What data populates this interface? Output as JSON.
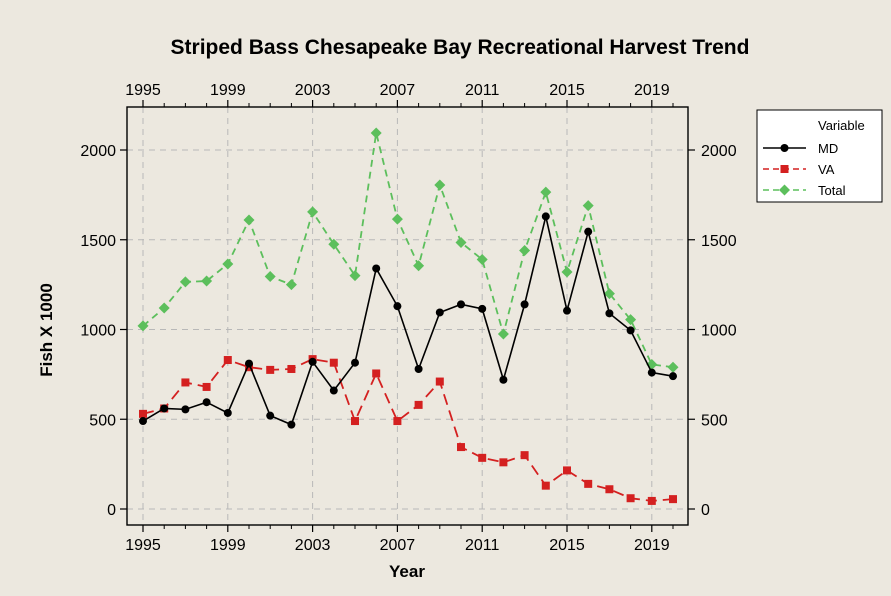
{
  "chart_data": {
    "type": "line",
    "title": "Striped Bass Chesapeake Bay Recreational Harvest Trend",
    "xlabel": "Year",
    "ylabel": "Fish  X  1000",
    "xlim": [
      1995,
      2020
    ],
    "ylim": [
      0,
      2200
    ],
    "x_ticks": [
      1995,
      1999,
      2003,
      2007,
      2011,
      2015,
      2019
    ],
    "y_ticks": [
      0,
      500,
      1000,
      1500,
      2000
    ],
    "grid": true,
    "legend": {
      "title": "Variable",
      "placement": "right-top"
    },
    "x": [
      1995,
      1996,
      1997,
      1998,
      1999,
      2000,
      2001,
      2002,
      2003,
      2004,
      2005,
      2006,
      2007,
      2008,
      2009,
      2010,
      2011,
      2012,
      2013,
      2014,
      2015,
      2016,
      2017,
      2018,
      2019,
      2020
    ],
    "series": [
      {
        "name": "MD",
        "color": "#000000",
        "marker": "circle",
        "dash": "solid",
        "values": [
          490,
          560,
          555,
          595,
          535,
          810,
          520,
          470,
          820,
          660,
          815,
          1340,
          1130,
          780,
          1095,
          1140,
          1115,
          720,
          1140,
          1630,
          1105,
          1545,
          1090,
          995,
          760,
          740
        ]
      },
      {
        "name": "VA",
        "color": "#d42020",
        "marker": "square",
        "dash": "dash",
        "values": [
          530,
          560,
          705,
          680,
          830,
          790,
          775,
          780,
          835,
          815,
          490,
          755,
          490,
          580,
          710,
          345,
          285,
          260,
          300,
          130,
          215,
          140,
          110,
          60,
          45,
          55
        ]
      },
      {
        "name": "Total",
        "color": "#5cbf5c",
        "marker": "diamond",
        "dash": "dash",
        "values": [
          1020,
          1120,
          1265,
          1270,
          1365,
          1610,
          1295,
          1250,
          1655,
          1475,
          1300,
          2095,
          1615,
          1355,
          1805,
          1485,
          1390,
          975,
          1440,
          1765,
          1320,
          1690,
          1200,
          1055,
          805,
          790
        ]
      }
    ]
  }
}
